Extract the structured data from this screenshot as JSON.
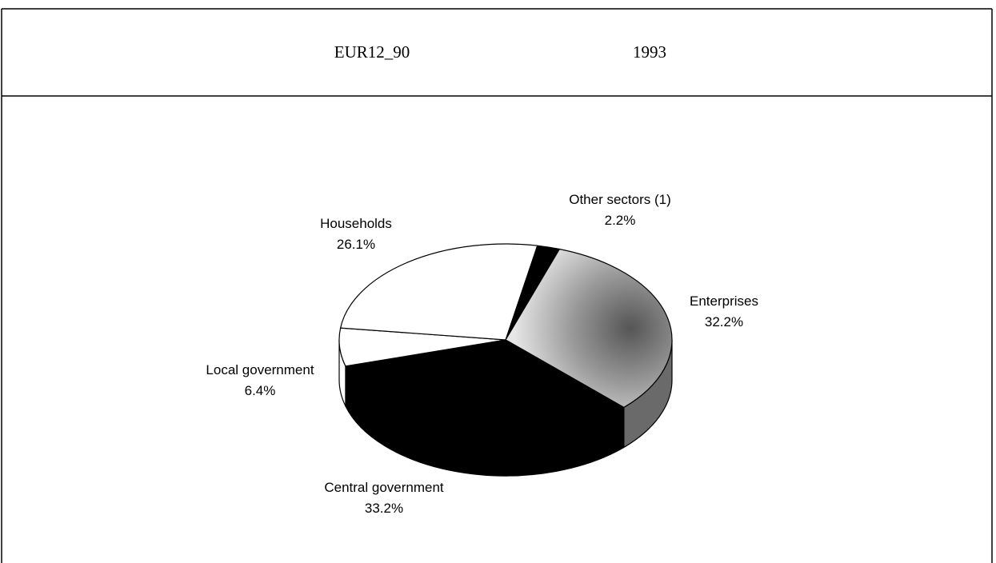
{
  "header": {
    "left": "EUR12_90",
    "right": "1993"
  },
  "chart_data": {
    "type": "pie",
    "categories": [
      "Other sectors (1)",
      "Enterprises",
      "Central government",
      "Local government",
      "Households"
    ],
    "values": [
      2.2,
      32.2,
      33.2,
      6.4,
      26.1
    ],
    "value_labels": [
      "2.2%",
      "32.2%",
      "33.2%",
      "6.4%",
      "26.1%"
    ],
    "colors": [
      "#000000",
      "#a8a8a8",
      "#000000",
      "#ffffff",
      "#ffffff"
    ]
  }
}
